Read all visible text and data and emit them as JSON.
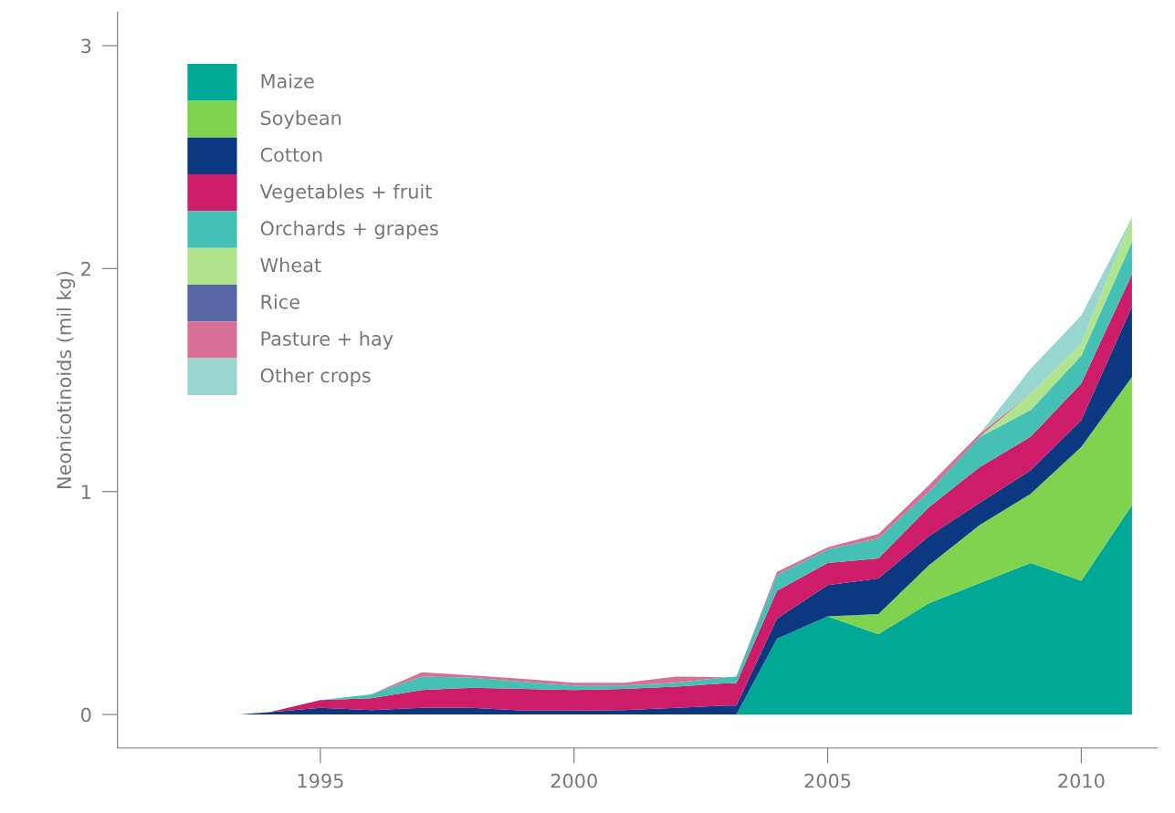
{
  "chart_data": {
    "type": "area",
    "stacked": true,
    "ylabel": "Neonicotinoids (mil kg)",
    "x": [
      1993.4,
      1994,
      1995,
      1996,
      1997,
      1998,
      1999,
      2000,
      2001,
      2002,
      2003,
      2003.2,
      2004,
      2005,
      2006,
      2007,
      2008,
      2009,
      2010,
      2011
    ],
    "series": [
      {
        "name": "Maize",
        "color": "#00a896",
        "values": [
          0,
          0,
          0,
          0,
          0,
          0,
          0,
          0,
          0,
          0,
          0,
          0,
          0.34,
          0.44,
          0.36,
          0.5,
          0.59,
          0.68,
          0.6,
          0.94
        ]
      },
      {
        "name": "Soybean",
        "color": "#7fd34e",
        "values": [
          0,
          0,
          0,
          0,
          0,
          0,
          0,
          0,
          0,
          0,
          0,
          0,
          0,
          0,
          0.09,
          0.17,
          0.26,
          0.31,
          0.6,
          0.575
        ]
      },
      {
        "name": "Cotton",
        "color": "#0b3880",
        "values": [
          0,
          0.01,
          0.03,
          0.02,
          0.03,
          0.03,
          0.018,
          0.018,
          0.02,
          0.03,
          0.04,
          0.04,
          0.09,
          0.14,
          0.16,
          0.13,
          0.1,
          0.105,
          0.12,
          0.315
        ]
      },
      {
        "name": "Vegetables + fruit",
        "color": "#cd1d68",
        "values": [
          0,
          0,
          0.035,
          0.053,
          0.08,
          0.09,
          0.097,
          0.092,
          0.095,
          0.095,
          0.1,
          0.1,
          0.125,
          0.1,
          0.09,
          0.13,
          0.16,
          0.15,
          0.165,
          0.145
        ]
      },
      {
        "name": "Orchards + grapes",
        "color": "#45c0b4",
        "values": [
          0,
          0,
          0,
          0.017,
          0.06,
          0.045,
          0.032,
          0.02,
          0.015,
          0.018,
          0.027,
          0.03,
          0.07,
          0.06,
          0.09,
          0.07,
          0.135,
          0.12,
          0.125,
          0.145
        ]
      },
      {
        "name": "Wheat",
        "color": "#b0e48e",
        "values": [
          0,
          0,
          0,
          0,
          0,
          0,
          0,
          0,
          0,
          0,
          0,
          0,
          0,
          0,
          0,
          0,
          0,
          0.075,
          0.055,
          0.11
        ]
      },
      {
        "name": "Rice",
        "color": "#5766a4",
        "values": [
          null,
          null,
          null,
          null,
          null,
          null,
          null,
          null,
          null,
          null,
          null,
          null,
          null,
          null,
          null,
          null,
          null,
          null,
          null,
          null
        ]
      },
      {
        "name": "Pasture + hay",
        "color": "#d67096",
        "values": [
          null,
          null,
          null,
          0,
          0.02,
          0.01,
          0.013,
          0.013,
          0.013,
          0.027,
          0,
          0,
          0.015,
          0.01,
          0.02,
          0.03,
          0.015,
          0,
          null,
          null
        ]
      },
      {
        "name": "Other crops",
        "color": "#98d6cf",
        "values": [
          null,
          null,
          null,
          null,
          null,
          null,
          null,
          null,
          null,
          null,
          null,
          null,
          null,
          null,
          null,
          null,
          0,
          0.11,
          0.125,
          0
        ]
      }
    ],
    "xlim": [
      1991,
      2011.5
    ],
    "ylim": [
      -0.15,
      3.15
    ],
    "xticks": [
      1995,
      2000,
      2005,
      2010
    ],
    "yticks": [
      0,
      1,
      2,
      3
    ],
    "grid": false,
    "legend": "top left"
  }
}
